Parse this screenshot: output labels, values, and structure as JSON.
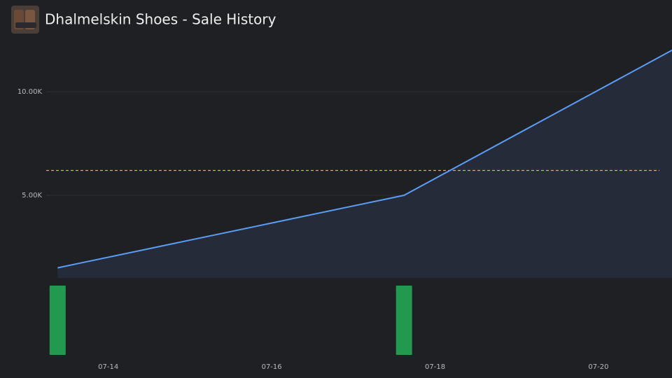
{
  "chart_data": {
    "type": "line",
    "title": "Dhalmelskin Shoes - Sale History",
    "x": [
      13.38,
      17.62,
      20.9
    ],
    "series": [
      {
        "color": "#5b9cf5",
        "values": [
          1500,
          5000,
          12000
        ]
      }
    ],
    "area_color": "#252b38",
    "reference_line": {
      "value": 6200,
      "color": "#e6b422"
    },
    "volume": {
      "x": [
        13.38,
        17.62
      ],
      "values": [
        1,
        1
      ],
      "ylim": [
        0,
        1
      ],
      "color": "#23994f"
    },
    "xlim": [
      13.24,
      20.9
    ],
    "xticks": [
      {
        "value": 14,
        "label": "07-14"
      },
      {
        "value": 16,
        "label": "07-16"
      },
      {
        "value": 18,
        "label": "07-18"
      },
      {
        "value": 20,
        "label": "07-20"
      }
    ],
    "ylim": [
      1000,
      12000
    ],
    "yticks": [
      {
        "value": 5000,
        "label": "5.00K"
      },
      {
        "value": 10000,
        "label": "10.00K"
      }
    ],
    "grid": true
  }
}
